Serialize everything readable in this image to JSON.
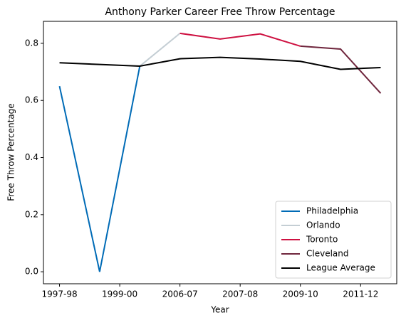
{
  "chart_data": {
    "type": "line",
    "title": "Anthony Parker Career Free Throw Percentage",
    "xlabel": "Year",
    "ylabel": "Free Throw Percentage",
    "xlim": [
      -0.4,
      8.4
    ],
    "xticks": [
      {
        "value": 0,
        "label": "1997-98"
      },
      {
        "value": 1.5,
        "label": "1999-00"
      },
      {
        "value": 3,
        "label": "2006-07"
      },
      {
        "value": 4.5,
        "label": "2007-08"
      },
      {
        "value": 6,
        "label": "2009-10"
      },
      {
        "value": 7.5,
        "label": "2011-12"
      }
    ],
    "ylim": [
      -0.042,
      0.877
    ],
    "yticks": [
      {
        "value": 0,
        "label": "0.0"
      },
      {
        "value": 0.2,
        "label": "0.2"
      },
      {
        "value": 0.4,
        "label": "0.4"
      },
      {
        "value": 0.6,
        "label": "0.6"
      },
      {
        "value": 0.8,
        "label": "0.8"
      }
    ],
    "legend": "lower right",
    "series": [
      {
        "name": "Philadelphia",
        "color": "#006bb6",
        "x": [
          0,
          1,
          2
        ],
        "values": [
          0.65,
          0.0,
          0.72
        ]
      },
      {
        "name": "Orlando",
        "color": "#c4ced4",
        "x": [
          2,
          3
        ],
        "values": [
          0.72,
          0.835
        ]
      },
      {
        "name": "Toronto",
        "color": "#ce1141",
        "x": [
          3,
          4,
          5,
          6
        ],
        "values": [
          0.835,
          0.815,
          0.833,
          0.79
        ]
      },
      {
        "name": "Cleveland",
        "color": "#6f263d",
        "x": [
          6,
          7,
          8
        ],
        "values": [
          0.79,
          0.78,
          0.625
        ]
      },
      {
        "name": "League Average",
        "color": "#000000",
        "x": [
          0,
          1,
          2,
          3,
          4,
          5,
          6,
          7,
          8
        ],
        "values": [
          0.732,
          0.726,
          0.72,
          0.746,
          0.751,
          0.745,
          0.737,
          0.709,
          0.715
        ]
      }
    ]
  }
}
